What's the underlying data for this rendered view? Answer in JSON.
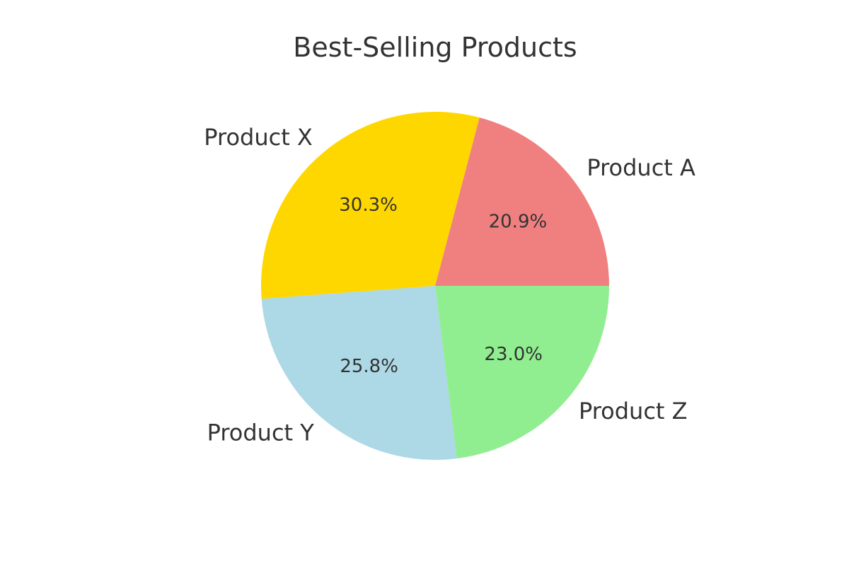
{
  "chart_data": {
    "type": "pie",
    "title": "Best-Selling Products",
    "slices": [
      {
        "label": "Product A",
        "value": 20.9,
        "pct_label": "20.9%",
        "color": "#F08080"
      },
      {
        "label": "Product X",
        "value": 30.3,
        "pct_label": "30.3%",
        "color": "#FFD700"
      },
      {
        "label": "Product Y",
        "value": 25.8,
        "pct_label": "25.8%",
        "color": "#ADD8E6"
      },
      {
        "label": "Product Z",
        "value": 23.0,
        "pct_label": "23.0%",
        "color": "#90EE90"
      }
    ],
    "start_angle_deg": 0,
    "direction": "counterclockwise"
  }
}
